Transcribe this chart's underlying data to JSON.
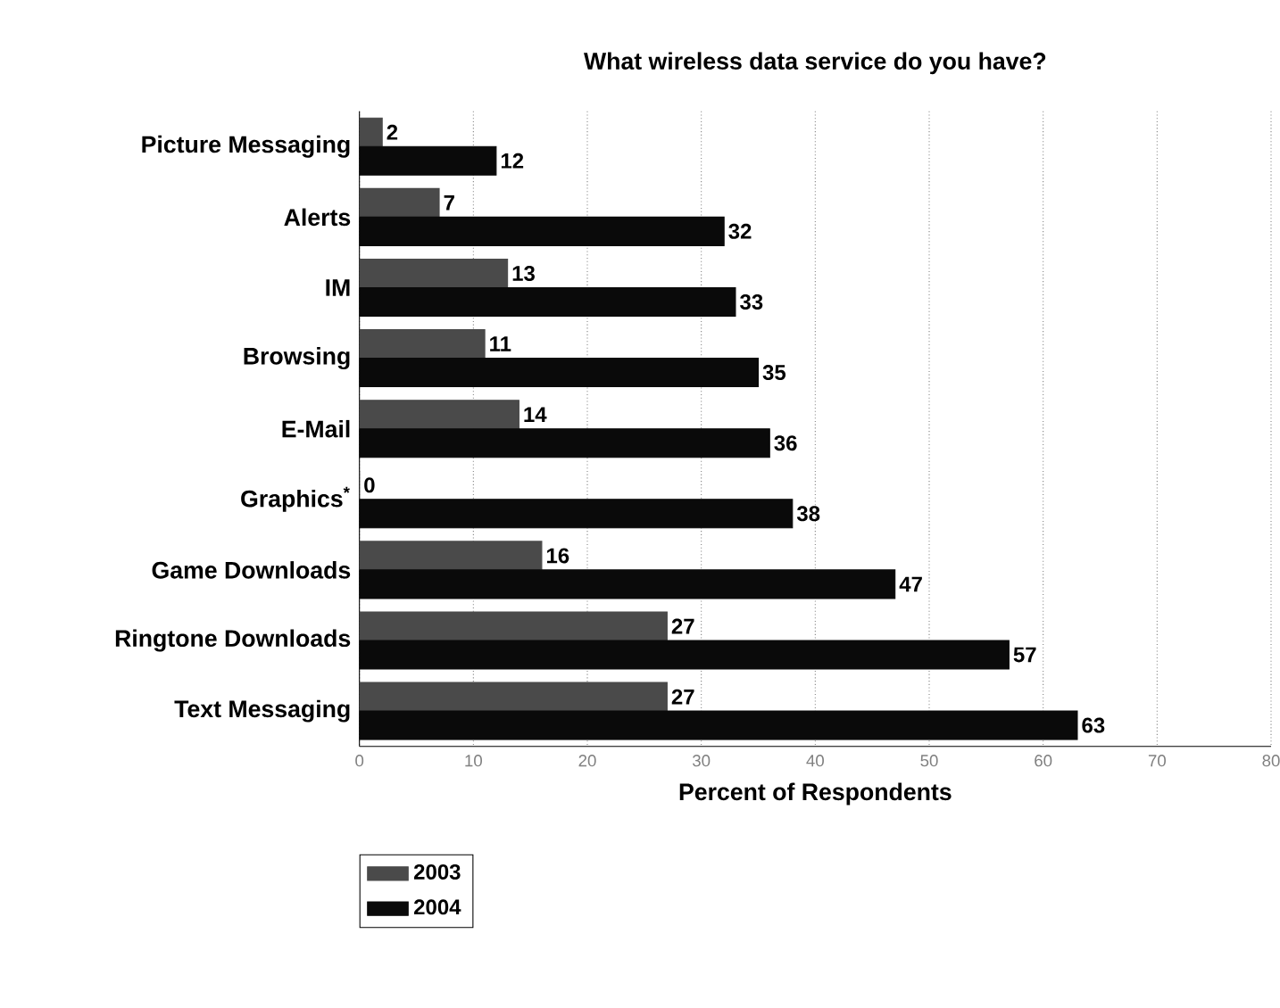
{
  "chart_data": {
    "type": "bar",
    "orientation": "horizontal",
    "title": "What wireless data service do you have?",
    "xlabel": "Percent of Respondents",
    "categories": [
      "Picture Messaging",
      "Alerts",
      "IM",
      "Browsing",
      "E-Mail",
      "Graphics$^{*}$",
      "Game Downloads",
      "Ringtone Downloads",
      "Text Messaging"
    ],
    "series": [
      {
        "name": "2003",
        "color": "#4a4a4a",
        "values": [
          2,
          7,
          13,
          11,
          14,
          0,
          16,
          27,
          27
        ]
      },
      {
        "name": "2004",
        "color": "#0a0a0a",
        "values": [
          12,
          32,
          33,
          35,
          36,
          38,
          47,
          57,
          63
        ]
      }
    ],
    "xlim": [
      0,
      80
    ],
    "xticks": [
      0,
      10,
      20,
      30,
      40,
      50,
      60,
      70,
      80
    ],
    "grid": "x",
    "legend": "bottom left",
    "data_labels": true
  }
}
